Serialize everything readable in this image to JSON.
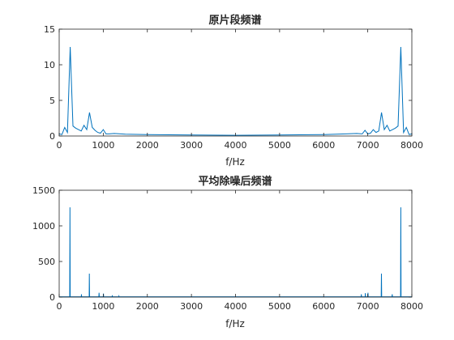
{
  "chart_data": [
    {
      "type": "line",
      "title": "原片段频谱",
      "xlabel": "f/Hz",
      "ylabel": "",
      "xlim": [
        0,
        8000
      ],
      "ylim": [
        0,
        15
      ],
      "xticks": [
        0,
        1000,
        2000,
        3000,
        4000,
        5000,
        6000,
        7000,
        8000
      ],
      "yticks": [
        0,
        5,
        10,
        15
      ],
      "grid": false,
      "color": "#0072bd",
      "series": [
        {
          "x": [
            0,
            62,
            125,
            187,
            250,
            312,
            375,
            437,
            500,
            562,
            625,
            687,
            750,
            812,
            875,
            937,
            1000,
            1062,
            1125,
            1250,
            1500,
            2000,
            3000,
            4000,
            5000,
            6000,
            6500,
            6750,
            6875,
            6937,
            7000,
            7062,
            7125,
            7187,
            7250,
            7312,
            7375,
            7437,
            7500,
            7562,
            7625,
            7687,
            7750,
            7812,
            7875,
            7937,
            8000
          ],
          "y": [
            0.3,
            0.2,
            1.2,
            0.5,
            12.5,
            1.4,
            1.1,
            0.9,
            0.7,
            1.5,
            0.9,
            3.3,
            1.2,
            0.8,
            0.5,
            0.4,
            0.9,
            0.3,
            0.3,
            0.35,
            0.25,
            0.2,
            0.15,
            0.1,
            0.15,
            0.2,
            0.3,
            0.35,
            0.3,
            0.8,
            0.3,
            0.4,
            0.9,
            0.5,
            0.7,
            3.3,
            0.9,
            1.5,
            0.7,
            0.9,
            1.1,
            1.4,
            12.5,
            0.5,
            1.2,
            0.2,
            0.3
          ]
        }
      ]
    },
    {
      "type": "line",
      "title": "平均除噪后频谱",
      "xlabel": "f/Hz",
      "ylabel": "",
      "xlim": [
        0,
        8000
      ],
      "ylim": [
        0,
        1500
      ],
      "xticks": [
        0,
        1000,
        2000,
        3000,
        4000,
        5000,
        6000,
        7000,
        8000
      ],
      "yticks": [
        0,
        500,
        1000,
        1500
      ],
      "grid": false,
      "color": "#0072bd",
      "series": [
        {
          "x": [
            0,
            240,
            245,
            250,
            260,
            500,
            505,
            510,
            520,
            680,
            685,
            690,
            700,
            900,
            905,
            910,
            920,
            1000,
            1005,
            1010,
            1200,
            1205,
            1210,
            1350,
            1355,
            1360,
            2000,
            4000,
            6000,
            6850,
            6855,
            6860,
            6940,
            6945,
            6950,
            7000,
            7005,
            7010,
            7300,
            7305,
            7310,
            7315,
            7550,
            7555,
            7560,
            7745,
            7750,
            7755,
            7760,
            8000
          ],
          "y": [
            5,
            5,
            1260,
            5,
            5,
            5,
            40,
            5,
            5,
            5,
            330,
            5,
            5,
            5,
            60,
            5,
            5,
            5,
            50,
            5,
            5,
            25,
            5,
            5,
            15,
            5,
            5,
            5,
            5,
            5,
            40,
            5,
            5,
            55,
            5,
            5,
            60,
            5,
            5,
            5,
            330,
            5,
            5,
            40,
            5,
            5,
            1260,
            5,
            5,
            5
          ]
        }
      ]
    }
  ]
}
